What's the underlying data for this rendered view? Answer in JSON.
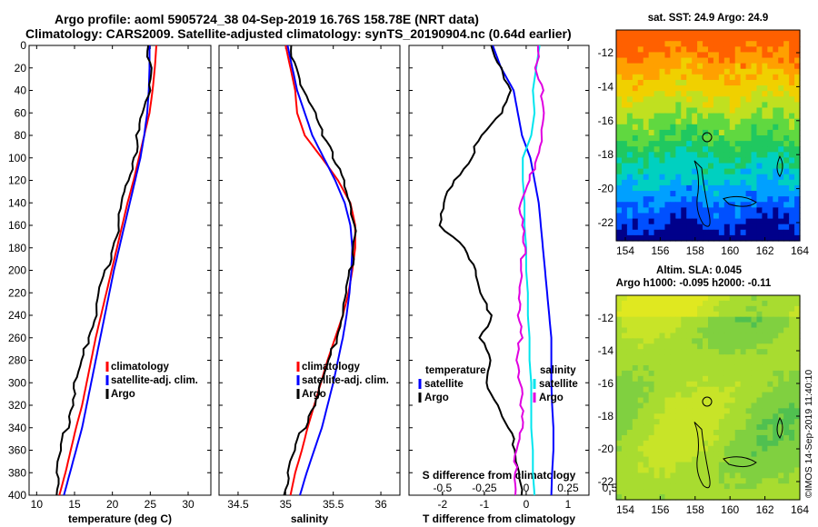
{
  "header": {
    "line1": "Argo profile: aoml 5905724_38 04-Sep-2019 16.76S 158.78E (NRT data)",
    "line2": "Climatology: CARS2009. Satellite-adjusted climatology: synTS_20190904.nc (0.64d earlier)"
  },
  "credit": "©IMOS 14-Sep-2019 11:40:10",
  "colors": {
    "climatology": "#ff0000",
    "satellite": "#0000ff",
    "argo": "#000000",
    "cyan": "#00e5ee",
    "magenta": "#e000e0"
  },
  "chart_data": [
    {
      "type": "line",
      "id": "temperature",
      "xlabel": "temperature (deg C)",
      "ylim": [
        400,
        0
      ],
      "xlim": [
        9,
        33
      ],
      "xticks": [
        10,
        15,
        20,
        25,
        30
      ],
      "yticks": [
        0,
        20,
        40,
        60,
        80,
        100,
        120,
        140,
        160,
        180,
        200,
        220,
        240,
        260,
        280,
        300,
        320,
        340,
        360,
        380,
        400
      ],
      "legend": {
        "position": "center-right",
        "entries": [
          "climatology",
          "satellite-adj. clim.",
          "Argo"
        ]
      },
      "depth": [
        0,
        20,
        40,
        60,
        80,
        100,
        120,
        140,
        160,
        180,
        200,
        220,
        240,
        260,
        280,
        300,
        320,
        340,
        360,
        380,
        400
      ],
      "series": [
        {
          "name": "climatology",
          "color": "climatology",
          "values": [
            25.8,
            25.6,
            25.3,
            24.9,
            24.2,
            23.5,
            22.8,
            22.0,
            21.3,
            20.6,
            19.9,
            19.2,
            18.5,
            17.8,
            17.2,
            16.6,
            16.0,
            15.2,
            14.5,
            13.8,
            13.0
          ]
        },
        {
          "name": "satellite-adj. clim.",
          "color": "satellite",
          "values": [
            24.9,
            24.9,
            24.8,
            24.6,
            24.2,
            23.7,
            23.0,
            22.3,
            21.6,
            20.9,
            20.2,
            19.6,
            19.0,
            18.4,
            17.8,
            17.2,
            16.6,
            16.0,
            15.2,
            14.4,
            13.6
          ]
        },
        {
          "name": "Argo",
          "color": "argo",
          "values": [
            25.0,
            25.0,
            24.9,
            24.4,
            23.6,
            22.9,
            22.2,
            21.5,
            20.9,
            20.2,
            19.4,
            18.6,
            17.9,
            17.0,
            16.2,
            15.4,
            14.7,
            14.1,
            13.5,
            13.0,
            12.6
          ]
        }
      ]
    },
    {
      "type": "line",
      "id": "salinity",
      "xlabel": "salinity",
      "ylim": [
        400,
        0
      ],
      "xlim": [
        34.3,
        36.2
      ],
      "xticks": [
        34.5,
        35,
        35.5,
        36
      ],
      "xtick_labels": [
        "34.5",
        "35",
        "35.5",
        "36"
      ],
      "legend": {
        "position": "center-right",
        "entries": [
          "climatology",
          "satellite-adj. clim.",
          "Argo"
        ]
      },
      "depth": [
        0,
        20,
        40,
        60,
        80,
        100,
        120,
        140,
        160,
        180,
        200,
        220,
        240,
        260,
        280,
        300,
        320,
        340,
        360,
        380,
        400
      ],
      "series": [
        {
          "name": "climatology",
          "color": "climatology",
          "values": [
            35.0,
            35.05,
            35.1,
            35.12,
            35.2,
            35.38,
            35.55,
            35.68,
            35.73,
            35.73,
            35.7,
            35.66,
            35.6,
            35.52,
            35.44,
            35.37,
            35.3,
            35.23,
            35.17,
            35.1,
            35.05
          ]
        },
        {
          "name": "satellite-adj. clim.",
          "color": "satellite",
          "values": [
            35.02,
            35.07,
            35.12,
            35.2,
            35.28,
            35.4,
            35.52,
            35.62,
            35.68,
            35.7,
            35.69,
            35.67,
            35.64,
            35.6,
            35.55,
            35.5,
            35.44,
            35.38,
            35.3,
            35.22,
            35.15
          ]
        },
        {
          "name": "Argo",
          "color": "argo",
          "values": [
            35.08,
            35.1,
            35.18,
            35.35,
            35.42,
            35.5,
            35.62,
            35.7,
            35.73,
            35.72,
            35.7,
            35.67,
            35.6,
            35.55,
            35.47,
            35.4,
            35.3,
            35.2,
            35.12,
            35.05,
            34.98
          ]
        }
      ]
    },
    {
      "type": "line",
      "id": "difference",
      "xlabel": "T difference from climatology",
      "xlim": [
        -2.8,
        1.5
      ],
      "xticks": [
        -2,
        -1,
        0,
        1
      ],
      "secondary_xlabel": "S difference from climatology",
      "secondary_xlim": [
        -0.7,
        0.375
      ],
      "secondary_xticks": [
        -0.5,
        -0.25,
        0,
        0.25,
        0.5
      ],
      "secondary_xtick_labels": [
        "-0.5",
        "-0.25",
        "0",
        "0.25",
        "0.5"
      ],
      "ylim": [
        400,
        0
      ],
      "legend": {
        "temperature_title": "temperature",
        "salinity_title": "salinity",
        "entries_temperature": [
          "satellite",
          "Argo"
        ],
        "entries_salinity": [
          "satellite",
          "Argo"
        ]
      },
      "depth": [
        0,
        20,
        40,
        60,
        80,
        100,
        120,
        140,
        160,
        180,
        200,
        220,
        240,
        260,
        280,
        300,
        320,
        340,
        360,
        380,
        400
      ],
      "series": [
        {
          "name": "temperature satellite",
          "axis": "T",
          "color": "satellite",
          "values": [
            -0.8,
            -0.6,
            -0.3,
            -0.2,
            -0.1,
            0.1,
            0.2,
            0.3,
            0.35,
            0.4,
            0.45,
            0.5,
            0.55,
            0.6,
            0.6,
            0.6,
            0.62,
            0.65,
            0.65,
            0.62,
            0.6
          ]
        },
        {
          "name": "temperature Argo",
          "axis": "T",
          "color": "argo",
          "values": [
            -0.8,
            -0.6,
            -0.4,
            -0.5,
            -1.0,
            -1.3,
            -1.7,
            -1.9,
            -2.0,
            -1.5,
            -1.2,
            -1.0,
            -0.8,
            -1.1,
            -0.8,
            -0.9,
            -0.7,
            -0.4,
            -0.2,
            -0.1,
            -0.1
          ]
        },
        {
          "name": "salinity satellite",
          "axis": "S",
          "color": "cyan",
          "values": [
            0.08,
            0.06,
            0.04,
            0.05,
            0.03,
            -0.02,
            -0.02,
            -0.01,
            -0.01,
            0.0,
            0.0,
            0.01,
            0.01,
            0.02,
            0.02,
            0.03,
            0.03,
            0.03,
            0.04,
            0.04,
            0.05
          ]
        },
        {
          "name": "salinity Argo",
          "axis": "S",
          "color": "magenta",
          "values": [
            0.08,
            0.06,
            0.1,
            0.13,
            0.1,
            0.07,
            0.03,
            -0.02,
            -0.02,
            -0.01,
            -0.01,
            -0.02,
            -0.05,
            -0.02,
            -0.04,
            -0.02,
            -0.03,
            -0.01,
            -0.04,
            -0.06,
            -0.07
          ]
        }
      ]
    }
  ],
  "maps": [
    {
      "id": "sst",
      "title": "sat. SST: 24.9 Argo: 24.9",
      "xticks": [
        "154",
        "156",
        "158",
        "160",
        "162",
        "164"
      ],
      "yticks": [
        "-12",
        "-14",
        "-16",
        "-18",
        "-20",
        "-22"
      ],
      "colormap": [
        "#00008b",
        "#0050ff",
        "#00a0ff",
        "#00d0c0",
        "#20c860",
        "#60d840",
        "#c0e020",
        "#f0d000",
        "#ffa000",
        "#ff6000"
      ]
    },
    {
      "id": "sla",
      "title_line1": "Altim. SLA: 0.045",
      "title_line2": "Argo h1000: -0.095 h2000: -0.11",
      "xticks": [
        "154",
        "156",
        "158",
        "160",
        "162",
        "164"
      ],
      "yticks": [
        "-12",
        "-14",
        "-16",
        "-18",
        "-20",
        "-22"
      ],
      "colormap": [
        "#30b060",
        "#50c050",
        "#80d040",
        "#a8dc30",
        "#c8e428",
        "#e0e820"
      ]
    }
  ]
}
